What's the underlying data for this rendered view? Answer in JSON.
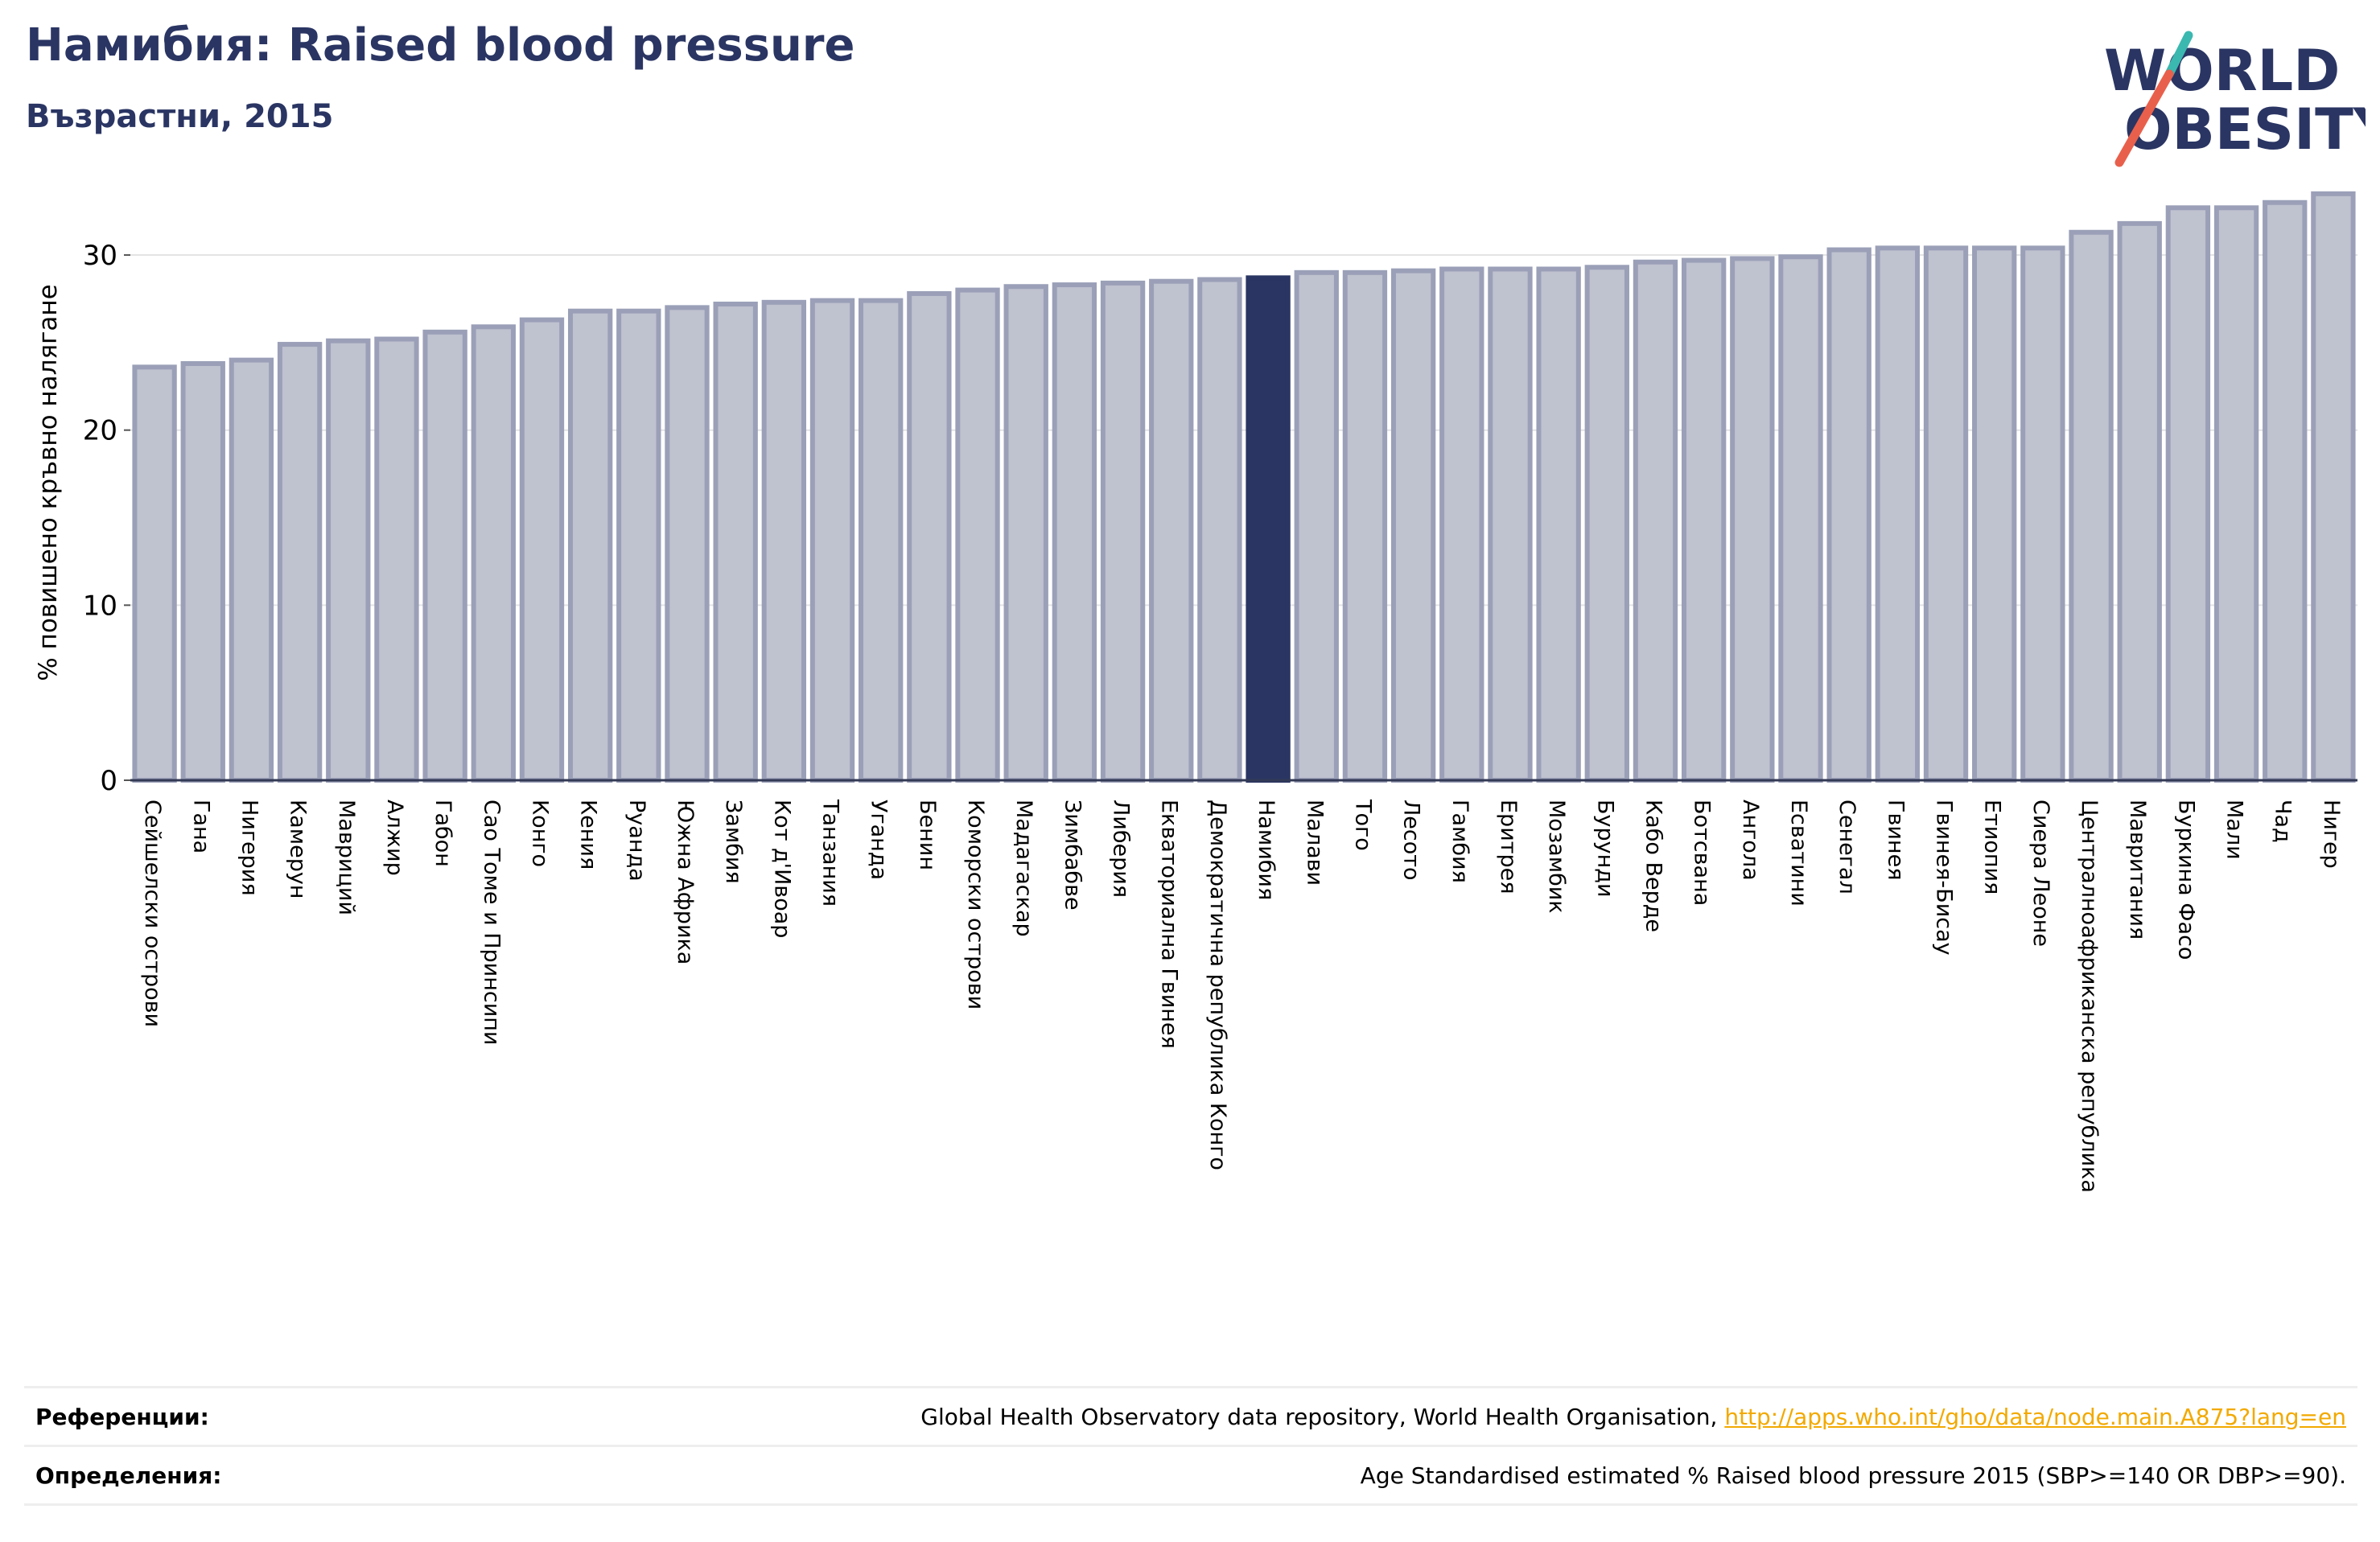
{
  "header": {
    "title": "Намибия: Raised blood pressure",
    "subtitle": "Възрастни, 2015"
  },
  "logo": {
    "line1": "WORLD",
    "line2": "OBESITY"
  },
  "colors": {
    "bar_fill": "#bfc2cf",
    "bar_stroke": "#9ba0b8",
    "highlight": "#2a3563",
    "title": "#2a3563",
    "link": "#f2a900",
    "logo_teal": "#3bb8b0",
    "logo_red": "#e8604c"
  },
  "chart_data": {
    "type": "bar",
    "ylabel": "% повишено кръвно налягане",
    "ylim": [
      0,
      34
    ],
    "yticks": [
      0,
      10,
      20,
      30
    ],
    "highlight": "Намибия",
    "grid": true,
    "categories": [
      "Сейшелски острови",
      "Гана",
      "Нигерия",
      "Камерун",
      "Мавриций",
      "Алжир",
      "Габон",
      "Сао Томе и Принсипи",
      "Конго",
      "Кения",
      "Руанда",
      "Южна Африка",
      "Замбия",
      "Кот д'Ивоар",
      "Танзания",
      "Уганда",
      "Бенин",
      "Коморски острови",
      "Мадагаскар",
      "Зимбабве",
      "Либерия",
      "Екваториална Гвинея",
      "Демократична република Конго",
      "Намибия",
      "Малави",
      "Того",
      "Лесото",
      "Гамбия",
      "Еритрея",
      "Мозамбик",
      "Бурунди",
      "Кабо Верде",
      "Ботсвана",
      "Ангола",
      "Есватини",
      "Сенегал",
      "Гвинея",
      "Гвинея-Бисау",
      "Етиопия",
      "Сиера Леоне",
      "Централноафриканска република",
      "Мавритания",
      "Буркина Фасо",
      "Мали",
      "Чад",
      "Нигер"
    ],
    "values": [
      23.6,
      23.8,
      24.0,
      24.9,
      25.1,
      25.2,
      25.6,
      25.9,
      26.3,
      26.8,
      26.8,
      27.0,
      27.2,
      27.3,
      27.4,
      27.4,
      27.8,
      28.0,
      28.2,
      28.3,
      28.4,
      28.5,
      28.6,
      28.7,
      29.0,
      29.0,
      29.1,
      29.2,
      29.2,
      29.2,
      29.3,
      29.6,
      29.7,
      29.8,
      29.9,
      30.3,
      30.4,
      30.4,
      30.4,
      30.4,
      31.3,
      31.8,
      32.7,
      32.7,
      33.0,
      33.5
    ]
  },
  "footer": {
    "references_label": "Референции:",
    "references_text": "Global Health Observatory data repository, World Health Organisation, ",
    "references_link": "http://apps.who.int/gho/data/node.main.A875?lang=en",
    "definitions_label": "Определения:",
    "definitions_text": "Age Standardised estimated % Raised blood pressure 2015 (SBP>=140 OR DBP>=90)."
  }
}
